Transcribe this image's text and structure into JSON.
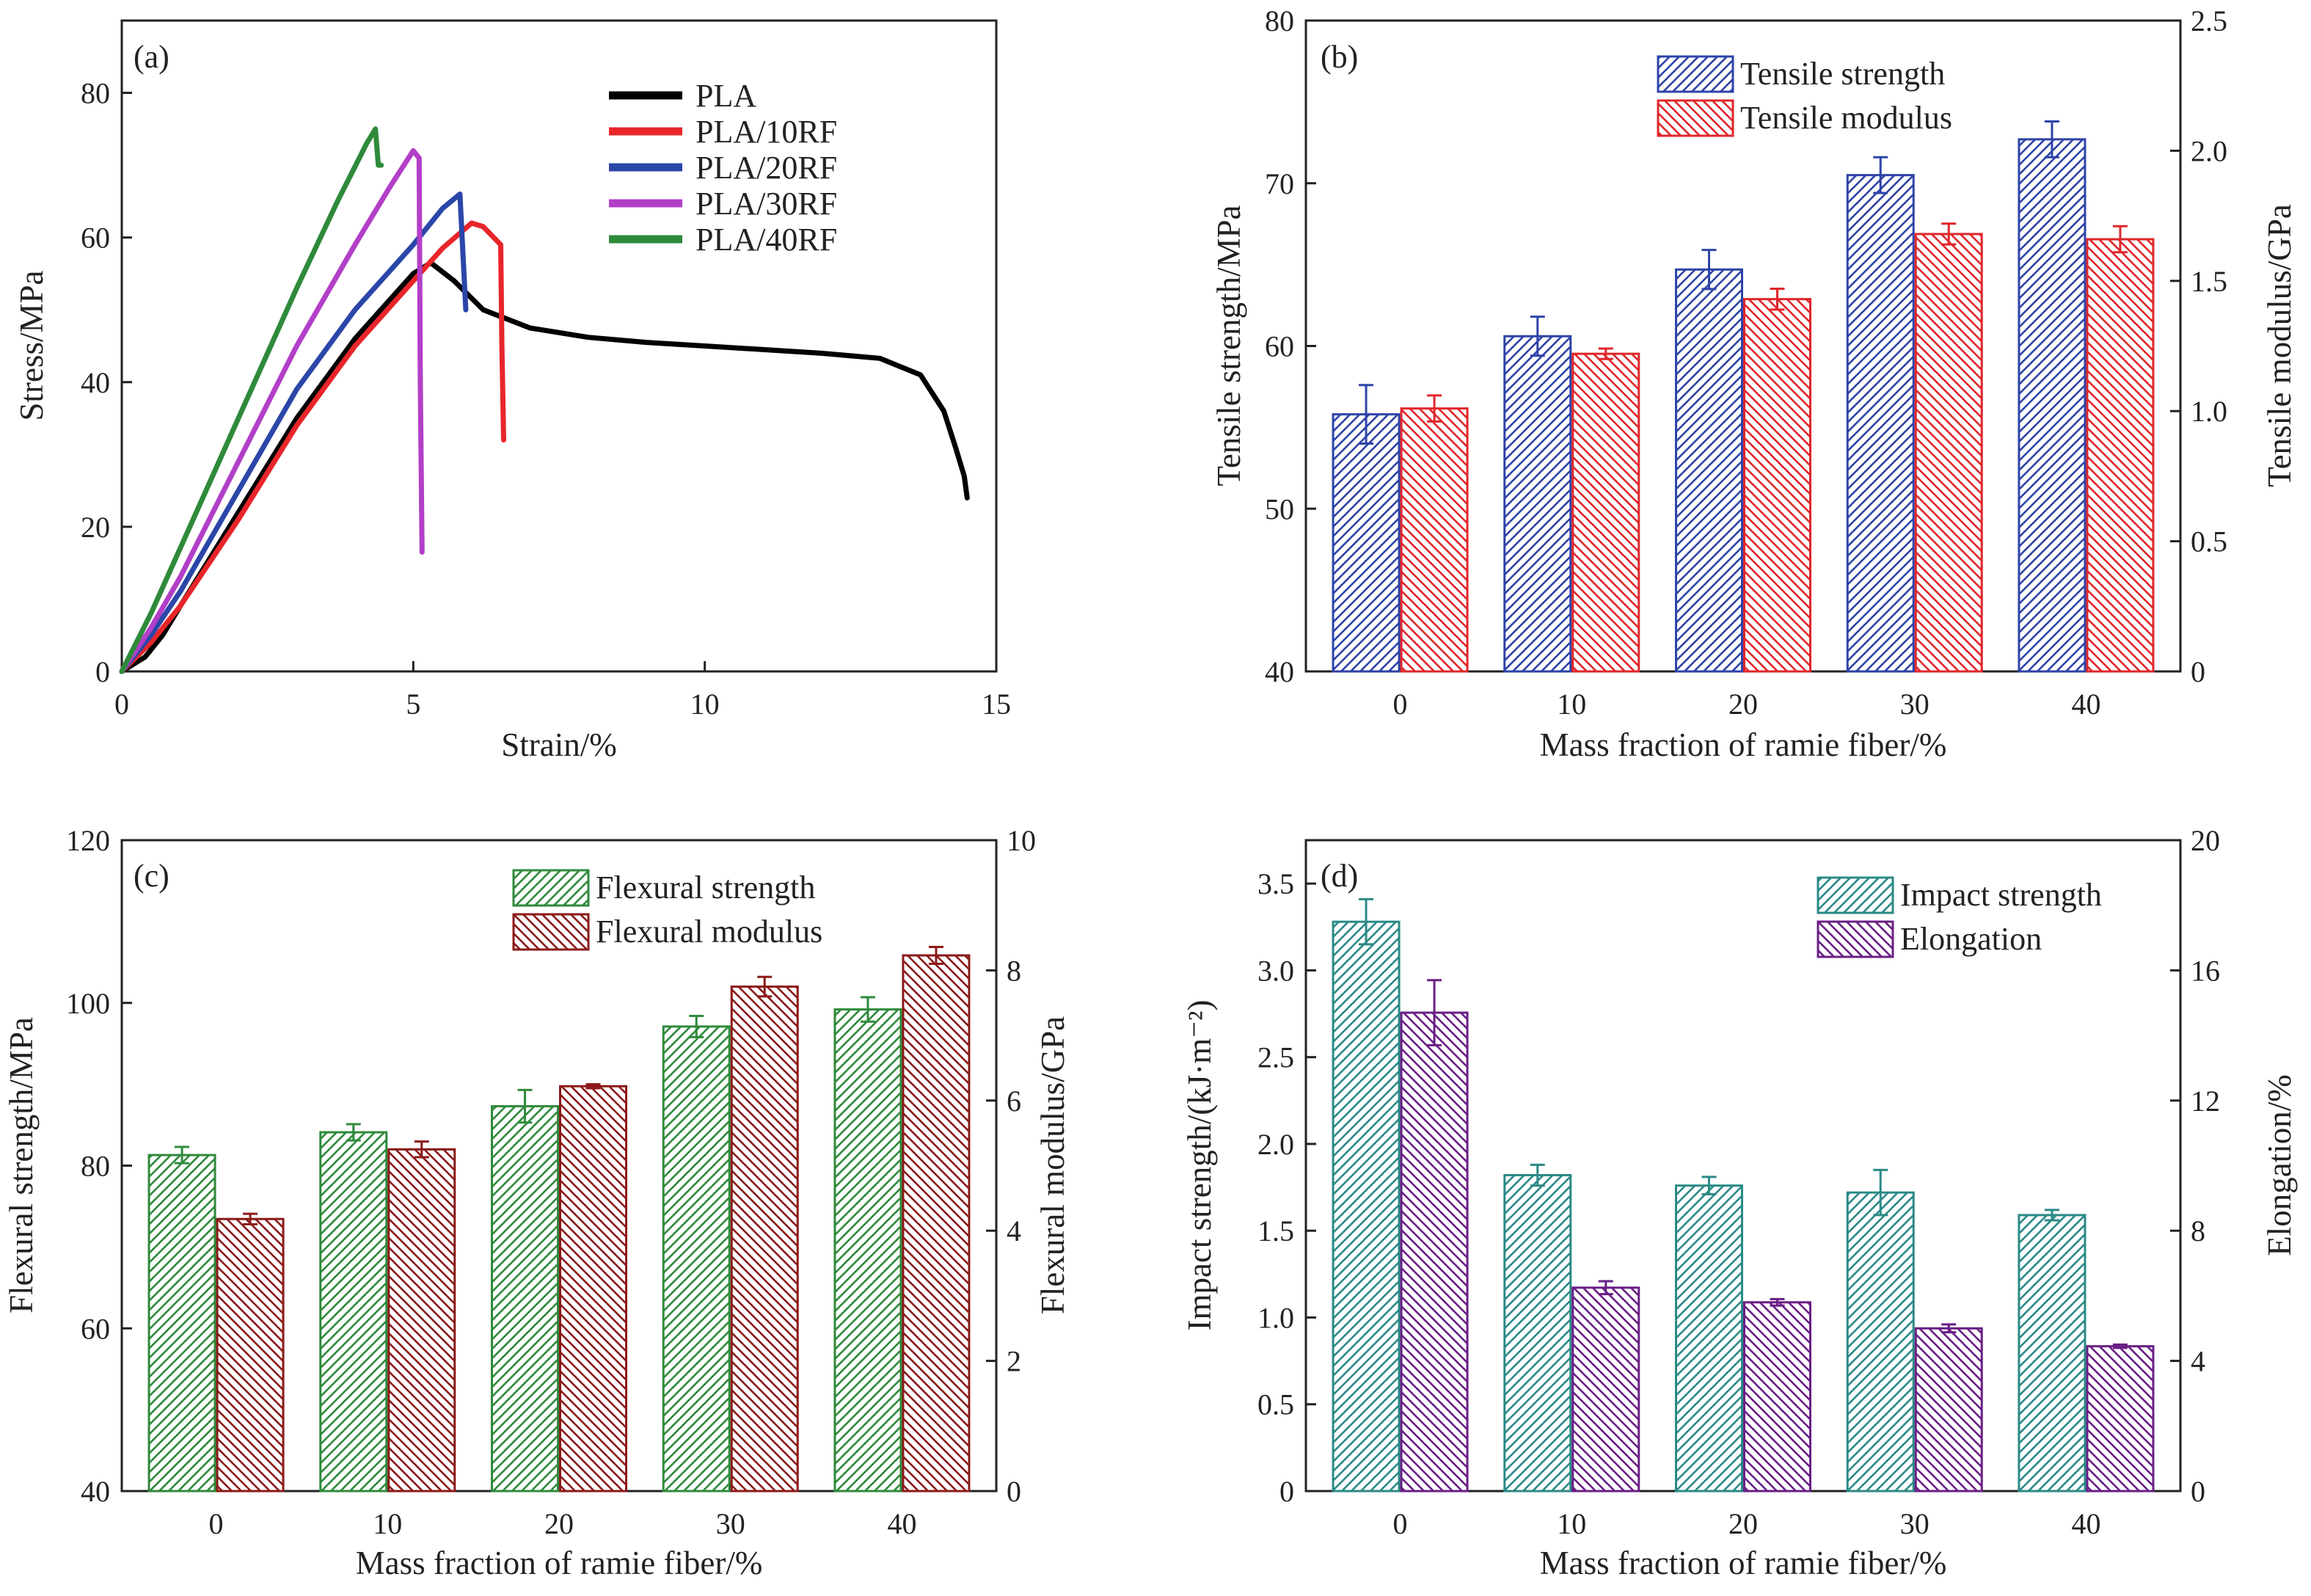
{
  "figure": {
    "panels": [
      {
        "tag": "(a)",
        "xlabel": "Strain/%",
        "ylabel": "Stress/MPa",
        "xticks": [
          "0",
          "5",
          "10",
          "15"
        ],
        "yticks": [
          "0",
          "20",
          "40",
          "60",
          "80"
        ]
      },
      {
        "tag": "(b)",
        "xlabel": "Mass fraction of ramie fiber/%",
        "ylabel": "Tensile strength/MPa",
        "ylabel_right": "Tensile modulus/GPa",
        "xticks": [
          "0",
          "10",
          "20",
          "30",
          "40"
        ],
        "yticks": [
          "40",
          "50",
          "60",
          "70",
          "80"
        ],
        "yticks_right": [
          "0",
          "0.5",
          "1.0",
          "1.5",
          "2.0",
          "2.5"
        ]
      },
      {
        "tag": "(c)",
        "xlabel": "Mass fraction of ramie fiber/%",
        "ylabel": "Flexural strength/MPa",
        "ylabel_right": "Flexural modulus/GPa",
        "xticks": [
          "0",
          "10",
          "20",
          "30",
          "40"
        ],
        "yticks": [
          "40",
          "60",
          "80",
          "100",
          "120"
        ],
        "yticks_right": [
          "0",
          "2",
          "4",
          "6",
          "8",
          "10"
        ]
      },
      {
        "tag": "(d)",
        "xlabel": "Mass fraction of ramie fiber/%",
        "ylabel": "Impact strength/(kJ·m⁻²)",
        "ylabel_right": "Elongation/%",
        "xticks": [
          "0",
          "10",
          "20",
          "30",
          "40"
        ],
        "yticks": [
          "0",
          "0.5",
          "1.0",
          "1.5",
          "2.0",
          "2.5",
          "3.0",
          "3.5"
        ],
        "yticks_right": [
          "0",
          "4",
          "8",
          "12",
          "16",
          "20"
        ]
      }
    ]
  },
  "chart_data": [
    {
      "type": "line",
      "xlabel": "Strain/%",
      "ylabel": "Stress/MPa",
      "xlim": [
        0,
        15
      ],
      "ylim": [
        0,
        90
      ],
      "legend_position": "top-right",
      "series": [
        {
          "name": "PLA",
          "color": "#000000",
          "points": [
            [
              0,
              0
            ],
            [
              0.4,
              2
            ],
            [
              0.7,
              5
            ],
            [
              1,
              9
            ],
            [
              2,
              22
            ],
            [
              3,
              35
            ],
            [
              4,
              46
            ],
            [
              5,
              55
            ],
            [
              5.3,
              56.5
            ],
            [
              5.7,
              54
            ],
            [
              6.2,
              50
            ],
            [
              7,
              47.5
            ],
            [
              8,
              46.2
            ],
            [
              9,
              45.5
            ],
            [
              10,
              45
            ],
            [
              11,
              44.5
            ],
            [
              12,
              44
            ],
            [
              13,
              43.3
            ],
            [
              13.7,
              41
            ],
            [
              14.1,
              36
            ],
            [
              14.3,
              31
            ],
            [
              14.45,
              27
            ],
            [
              14.5,
              24
            ]
          ]
        },
        {
          "name": "PLA/10RF",
          "color": "#e8252a",
          "points": [
            [
              0,
              0
            ],
            [
              0.5,
              4
            ],
            [
              1,
              9
            ],
            [
              2,
              21
            ],
            [
              3,
              34
            ],
            [
              4,
              45
            ],
            [
              5,
              54
            ],
            [
              5.5,
              58.5
            ],
            [
              6,
              62
            ],
            [
              6.2,
              61.5
            ],
            [
              6.5,
              59
            ],
            [
              6.52,
              45
            ],
            [
              6.55,
              32
            ]
          ]
        },
        {
          "name": "PLA/20RF",
          "color": "#2a46a8",
          "points": [
            [
              0,
              0
            ],
            [
              0.5,
              5
            ],
            [
              1,
              11
            ],
            [
              2,
              25
            ],
            [
              3,
              39
            ],
            [
              4,
              50
            ],
            [
              5,
              59
            ],
            [
              5.5,
              64
            ],
            [
              5.8,
              66
            ],
            [
              5.85,
              58
            ],
            [
              5.9,
              50
            ]
          ]
        },
        {
          "name": "PLA/30RF",
          "color": "#b23fc8",
          "points": [
            [
              0,
              0
            ],
            [
              0.5,
              6
            ],
            [
              1,
              13
            ],
            [
              2,
              29
            ],
            [
              3,
              45
            ],
            [
              4,
              59
            ],
            [
              4.6,
              67
            ],
            [
              5,
              72
            ],
            [
              5.1,
              71
            ],
            [
              5.12,
              40
            ],
            [
              5.15,
              16.5
            ]
          ]
        },
        {
          "name": "PLA/40RF",
          "color": "#2e8a3a",
          "points": [
            [
              0,
              0
            ],
            [
              0.5,
              8
            ],
            [
              1,
              17
            ],
            [
              2,
              35
            ],
            [
              3,
              53
            ],
            [
              3.7,
              65
            ],
            [
              4.2,
              73
            ],
            [
              4.35,
              75
            ],
            [
              4.4,
              70
            ],
            [
              4.45,
              70
            ]
          ]
        }
      ]
    },
    {
      "type": "bar",
      "xlabel": "Mass fraction of ramie fiber/%",
      "categories": [
        "0",
        "10",
        "20",
        "30",
        "40"
      ],
      "legend_position": "top-center",
      "series": [
        {
          "name": "Tensile strength",
          "axis": "left",
          "ylabel": "Tensile strength/MPa",
          "ylim": [
            40,
            80
          ],
          "color": "#2e43a8",
          "hatch": "right",
          "values": [
            55.8,
            60.6,
            64.7,
            70.5,
            72.7
          ],
          "errors": [
            1.8,
            1.2,
            1.2,
            1.1,
            1.1
          ]
        },
        {
          "name": "Tensile modulus",
          "axis": "right",
          "ylabel": "Tensile modulus/GPa",
          "ylim": [
            0,
            2.5
          ],
          "color": "#e0262b",
          "hatch": "left",
          "values": [
            1.01,
            1.22,
            1.43,
            1.68,
            1.66
          ],
          "errors": [
            0.05,
            0.02,
            0.04,
            0.04,
            0.05
          ]
        }
      ]
    },
    {
      "type": "bar",
      "xlabel": "Mass fraction of ramie fiber/%",
      "categories": [
        "0",
        "10",
        "20",
        "30",
        "40"
      ],
      "legend_position": "top-center",
      "series": [
        {
          "name": "Flexural strength",
          "axis": "left",
          "ylabel": "Flexural strength/MPa",
          "ylim": [
            40,
            120
          ],
          "color": "#2f8a3b",
          "hatch": "right",
          "values": [
            81.3,
            84.1,
            87.3,
            97.1,
            99.2
          ],
          "errors": [
            1.0,
            1.0,
            2.0,
            1.3,
            1.5
          ]
        },
        {
          "name": "Flexural modulus",
          "axis": "right",
          "ylabel": "Flexural modulus/GPa",
          "ylim": [
            0,
            10
          ],
          "color": "#8b1a1a",
          "hatch": "left",
          "values": [
            4.18,
            5.25,
            6.22,
            7.75,
            8.23
          ],
          "errors": [
            0.08,
            0.12,
            0.03,
            0.15,
            0.13
          ]
        }
      ]
    },
    {
      "type": "bar",
      "xlabel": "Mass fraction of ramie fiber/%",
      "categories": [
        "0",
        "10",
        "20",
        "30",
        "40"
      ],
      "legend_position": "top-right",
      "series": [
        {
          "name": "Impact strength",
          "axis": "left",
          "ylabel": "Impact strength/(kJ·m⁻²)",
          "ylim": [
            0,
            3.75
          ],
          "color": "#2b8a86",
          "hatch": "right",
          "values": [
            3.28,
            1.82,
            1.76,
            1.72,
            1.59
          ],
          "errors": [
            0.13,
            0.06,
            0.05,
            0.13,
            0.03
          ]
        },
        {
          "name": "Elongation",
          "axis": "right",
          "ylabel": "Elongation/%",
          "ylim": [
            0,
            20
          ],
          "color": "#6a1f86",
          "hatch": "left",
          "values": [
            14.7,
            6.25,
            5.8,
            5.0,
            4.45
          ],
          "errors": [
            1.0,
            0.2,
            0.1,
            0.12,
            0.05
          ]
        }
      ]
    }
  ]
}
